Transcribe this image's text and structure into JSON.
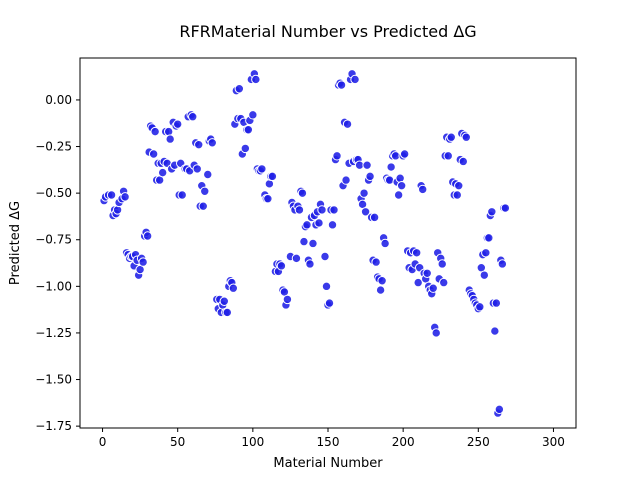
{
  "chart_data": {
    "type": "scatter",
    "title": "RFRMaterial Number vs Predicted ΔG",
    "xlabel": "Material Number",
    "ylabel": "Predicted ΔG",
    "xlim": [
      -15,
      315
    ],
    "ylim": [
      -1.76,
      0.225
    ],
    "xticks": [
      0,
      50,
      100,
      150,
      200,
      250,
      300
    ],
    "xtick_labels": [
      "0",
      "50",
      "100",
      "150",
      "200",
      "250",
      "300"
    ],
    "yticks": [
      0.0,
      -0.25,
      -0.5,
      -0.75,
      -1.0,
      -1.25,
      -1.5,
      -1.75
    ],
    "ytick_labels": [
      "0.00",
      "−0.25",
      "−0.50",
      "−0.75",
      "−1.00",
      "−1.25",
      "−1.50",
      "−1.75"
    ],
    "grid": false,
    "marker_color": "#1f1fe6",
    "marker_edge_color": "#ffffff",
    "points": [
      [
        1,
        -0.54
      ],
      [
        2,
        -0.52
      ],
      [
        4,
        -0.51
      ],
      [
        6,
        -0.51
      ],
      [
        7,
        -0.62
      ],
      [
        8,
        -0.59
      ],
      [
        9,
        -0.61
      ],
      [
        10,
        -0.59
      ],
      [
        11,
        -0.55
      ],
      [
        13,
        -0.53
      ],
      [
        14,
        -0.49
      ],
      [
        15,
        -0.52
      ],
      [
        16,
        -0.82
      ],
      [
        17,
        -0.83
      ],
      [
        18,
        -0.85
      ],
      [
        19,
        -0.84
      ],
      [
        20,
        -0.84
      ],
      [
        21,
        -0.89
      ],
      [
        22,
        -0.83
      ],
      [
        23,
        -0.86
      ],
      [
        24,
        -0.94
      ],
      [
        25,
        -0.91
      ],
      [
        26,
        -0.85
      ],
      [
        27,
        -0.87
      ],
      [
        28,
        -0.73
      ],
      [
        29,
        -0.71
      ],
      [
        30,
        -0.73
      ],
      [
        31,
        -0.28
      ],
      [
        32,
        -0.14
      ],
      [
        33,
        -0.15
      ],
      [
        34,
        -0.29
      ],
      [
        35,
        -0.17
      ],
      [
        36,
        -0.43
      ],
      [
        37,
        -0.34
      ],
      [
        38,
        -0.43
      ],
      [
        39,
        -0.34
      ],
      [
        40,
        -0.39
      ],
      [
        41,
        -0.33
      ],
      [
        42,
        -0.17
      ],
      [
        43,
        -0.34
      ],
      [
        44,
        -0.17
      ],
      [
        45,
        -0.21
      ],
      [
        46,
        -0.37
      ],
      [
        47,
        -0.12
      ],
      [
        48,
        -0.35
      ],
      [
        49,
        -0.14
      ],
      [
        50,
        -0.13
      ],
      [
        51,
        -0.51
      ],
      [
        52,
        -0.34
      ],
      [
        53,
        -0.51
      ],
      [
        55,
        -0.37
      ],
      [
        56,
        -0.37
      ],
      [
        57,
        -0.09
      ],
      [
        58,
        -0.38
      ],
      [
        59,
        -0.08
      ],
      [
        60,
        -0.09
      ],
      [
        61,
        -0.35
      ],
      [
        62,
        -0.23
      ],
      [
        63,
        -0.37
      ],
      [
        64,
        -0.24
      ],
      [
        65,
        -0.57
      ],
      [
        66,
        -0.46
      ],
      [
        67,
        -0.57
      ],
      [
        68,
        -0.49
      ],
      [
        70,
        -0.4
      ],
      [
        71,
        -0.22
      ],
      [
        72,
        -0.21
      ],
      [
        73,
        -0.23
      ],
      [
        76,
        -1.07
      ],
      [
        77,
        -1.12
      ],
      [
        78,
        -1.07
      ],
      [
        79,
        -1.14
      ],
      [
        80,
        -1.1
      ],
      [
        81,
        -1.08
      ],
      [
        82,
        -1.14
      ],
      [
        83,
        -1.14
      ],
      [
        84,
        -1.0
      ],
      [
        85,
        -0.97
      ],
      [
        86,
        -0.98
      ],
      [
        87,
        -1.01
      ],
      [
        88,
        -0.13
      ],
      [
        89,
        0.05
      ],
      [
        90,
        -0.1
      ],
      [
        91,
        0.06
      ],
      [
        92,
        -0.1
      ],
      [
        93,
        -0.29
      ],
      [
        94,
        -0.12
      ],
      [
        95,
        -0.26
      ],
      [
        96,
        -0.16
      ],
      [
        97,
        -0.16
      ],
      [
        98,
        -0.11
      ],
      [
        99,
        0.11
      ],
      [
        100,
        -0.08
      ],
      [
        101,
        0.14
      ],
      [
        102,
        0.11
      ],
      [
        103,
        -0.37
      ],
      [
        104,
        -0.38
      ],
      [
        105,
        -0.38
      ],
      [
        106,
        -0.37
      ],
      [
        108,
        -0.51
      ],
      [
        109,
        -0.53
      ],
      [
        110,
        -0.53
      ],
      [
        111,
        -0.45
      ],
      [
        112,
        -0.41
      ],
      [
        113,
        -0.41
      ],
      [
        115,
        -0.92
      ],
      [
        116,
        -0.88
      ],
      [
        117,
        -0.92
      ],
      [
        118,
        -0.88
      ],
      [
        119,
        -0.89
      ],
      [
        120,
        -1.02
      ],
      [
        121,
        -1.03
      ],
      [
        122,
        -1.1
      ],
      [
        123,
        -1.07
      ],
      [
        125,
        -0.84
      ],
      [
        126,
        -0.55
      ],
      [
        127,
        -0.57
      ],
      [
        128,
        -0.59
      ],
      [
        129,
        -0.85
      ],
      [
        130,
        -0.57
      ],
      [
        131,
        -0.59
      ],
      [
        132,
        -0.49
      ],
      [
        133,
        -0.5
      ],
      [
        134,
        -0.76
      ],
      [
        135,
        -0.68
      ],
      [
        136,
        -0.67
      ],
      [
        137,
        -0.86
      ],
      [
        138,
        -0.88
      ],
      [
        139,
        -0.63
      ],
      [
        140,
        -0.77
      ],
      [
        141,
        -0.62
      ],
      [
        142,
        -0.67
      ],
      [
        143,
        -0.6
      ],
      [
        144,
        -0.66
      ],
      [
        145,
        -0.56
      ],
      [
        146,
        -0.59
      ],
      [
        148,
        -0.84
      ],
      [
        149,
        -1.0
      ],
      [
        150,
        -1.1
      ],
      [
        151,
        -1.09
      ],
      [
        152,
        -0.59
      ],
      [
        153,
        -0.67
      ],
      [
        154,
        -0.59
      ],
      [
        155,
        -0.32
      ],
      [
        156,
        -0.3
      ],
      [
        157,
        0.08
      ],
      [
        158,
        0.09
      ],
      [
        159,
        0.08
      ],
      [
        160,
        -0.46
      ],
      [
        161,
        -0.12
      ],
      [
        162,
        -0.43
      ],
      [
        163,
        -0.13
      ],
      [
        164,
        -0.34
      ],
      [
        165,
        0.11
      ],
      [
        166,
        0.14
      ],
      [
        167,
        -0.33
      ],
      [
        168,
        0.11
      ],
      [
        169,
        -0.32
      ],
      [
        170,
        -0.32
      ],
      [
        171,
        -0.35
      ],
      [
        172,
        -0.53
      ],
      [
        173,
        -0.56
      ],
      [
        174,
        -0.5
      ],
      [
        175,
        -0.6
      ],
      [
        176,
        -0.35
      ],
      [
        177,
        -0.43
      ],
      [
        178,
        -0.41
      ],
      [
        179,
        -0.63
      ],
      [
        180,
        -0.86
      ],
      [
        181,
        -0.63
      ],
      [
        182,
        -0.87
      ],
      [
        183,
        -0.95
      ],
      [
        184,
        -0.96
      ],
      [
        185,
        -1.02
      ],
      [
        186,
        -0.97
      ],
      [
        187,
        -0.74
      ],
      [
        188,
        -0.77
      ],
      [
        189,
        -0.42
      ],
      [
        190,
        -0.43
      ],
      [
        191,
        -0.43
      ],
      [
        192,
        -0.36
      ],
      [
        193,
        -0.3
      ],
      [
        194,
        -0.29
      ],
      [
        195,
        -0.3
      ],
      [
        196,
        -0.44
      ],
      [
        197,
        -0.51
      ],
      [
        198,
        -0.42
      ],
      [
        199,
        -0.46
      ],
      [
        200,
        -0.3
      ],
      [
        201,
        -0.29
      ],
      [
        203,
        -0.81
      ],
      [
        204,
        -0.9
      ],
      [
        205,
        -0.82
      ],
      [
        206,
        -0.91
      ],
      [
        207,
        -0.81
      ],
      [
        208,
        -0.88
      ],
      [
        209,
        -0.82
      ],
      [
        210,
        -0.98
      ],
      [
        211,
        -0.9
      ],
      [
        212,
        -0.46
      ],
      [
        213,
        -0.48
      ],
      [
        214,
        -0.93
      ],
      [
        215,
        -0.96
      ],
      [
        216,
        -0.93
      ],
      [
        217,
        -1.0
      ],
      [
        218,
        -1.02
      ],
      [
        219,
        -1.04
      ],
      [
        220,
        -1.01
      ],
      [
        221,
        -1.22
      ],
      [
        222,
        -1.25
      ],
      [
        223,
        -0.82
      ],
      [
        224,
        -0.96
      ],
      [
        225,
        -0.85
      ],
      [
        226,
        -0.88
      ],
      [
        227,
        -0.98
      ],
      [
        228,
        -0.3
      ],
      [
        229,
        -0.2
      ],
      [
        230,
        -0.3
      ],
      [
        231,
        -0.21
      ],
      [
        232,
        -0.2
      ],
      [
        233,
        -0.44
      ],
      [
        234,
        -0.51
      ],
      [
        235,
        -0.45
      ],
      [
        236,
        -0.51
      ],
      [
        237,
        -0.46
      ],
      [
        238,
        -0.32
      ],
      [
        239,
        -0.18
      ],
      [
        240,
        -0.33
      ],
      [
        241,
        -0.19
      ],
      [
        242,
        -0.2
      ],
      [
        244,
        -1.02
      ],
      [
        245,
        -1.04
      ],
      [
        246,
        -1.05
      ],
      [
        247,
        -1.07
      ],
      [
        248,
        -1.09
      ],
      [
        249,
        -1.1
      ],
      [
        250,
        -1.12
      ],
      [
        251,
        -1.11
      ],
      [
        252,
        -0.9
      ],
      [
        253,
        -0.83
      ],
      [
        254,
        -0.94
      ],
      [
        255,
        -0.82
      ],
      [
        256,
        -0.74
      ],
      [
        257,
        -0.74
      ],
      [
        258,
        -0.62
      ],
      [
        259,
        -0.6
      ],
      [
        260,
        -1.09
      ],
      [
        261,
        -1.24
      ],
      [
        262,
        -1.09
      ],
      [
        263,
        -1.68
      ],
      [
        264,
        -1.66
      ],
      [
        265,
        -0.86
      ],
      [
        266,
        -0.88
      ],
      [
        267,
        -0.58
      ],
      [
        268,
        -0.58
      ]
    ]
  }
}
